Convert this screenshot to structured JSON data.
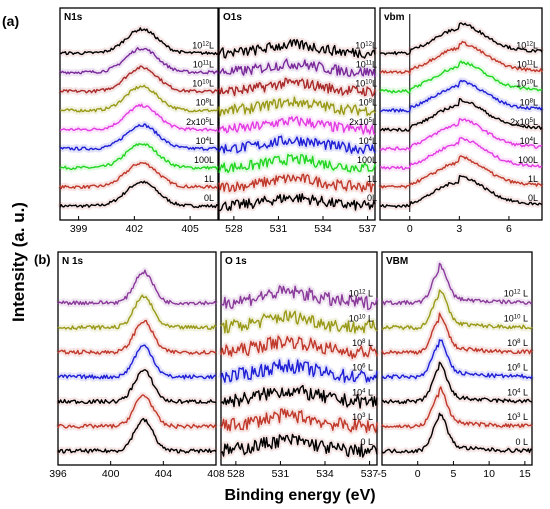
{
  "figure": {
    "ylabel": "Intensity (a. u.)",
    "xlabel": "Binding energy (eV)",
    "row_labels": [
      "(a)",
      "(b)"
    ]
  },
  "chart_data": [
    {
      "id": "a-n1s",
      "type": "line",
      "title": "N1s",
      "xlim": [
        398,
        406.5
      ],
      "xticks": [
        399,
        402,
        405
      ],
      "peak": 402.4,
      "width": 1.2,
      "series": [
        {
          "label": "0L",
          "color": "#000000"
        },
        {
          "label": "1L",
          "color": "#c0392b"
        },
        {
          "label": "100L",
          "color": "#22d622"
        },
        {
          "label": "10⁴L",
          "color": "#1f1fd6"
        },
        {
          "label": "2x10⁵L",
          "color": "#e23ce2"
        },
        {
          "label": "10⁸L",
          "color": "#9a9a1a"
        },
        {
          "label": "10¹⁰L",
          "color": "#aa2a2a"
        },
        {
          "label": "10¹¹L",
          "color": "#7a2a9a"
        },
        {
          "label": "10¹²L",
          "color": "#000000"
        }
      ]
    },
    {
      "id": "a-o1s",
      "type": "line",
      "title": "O1s",
      "xlim": [
        527,
        537.5
      ],
      "xticks": [
        528,
        531,
        534,
        537
      ],
      "peak": 532,
      "width": 2.5,
      "series": [
        {
          "label": "0L",
          "color": "#000000"
        },
        {
          "label": "1L",
          "color": "#c0392b"
        },
        {
          "label": "100L",
          "color": "#22d622"
        },
        {
          "label": "10⁴L",
          "color": "#1f1fd6"
        },
        {
          "label": "2x10⁵L",
          "color": "#e23ce2"
        },
        {
          "label": "10⁸L",
          "color": "#9a9a1a"
        },
        {
          "label": "10¹⁰L",
          "color": "#aa2a2a"
        },
        {
          "label": "10¹¹L",
          "color": "#7a2a9a"
        },
        {
          "label": "10¹²L",
          "color": "#000000"
        }
      ]
    },
    {
      "id": "a-vbm",
      "type": "line",
      "title": "vbm",
      "xlim": [
        -1.8,
        8
      ],
      "xticks": [
        0,
        3,
        6
      ],
      "peak": 3,
      "width": 1.5,
      "series": [
        {
          "label": "0L",
          "color": "#000000"
        },
        {
          "label": "1L",
          "color": "#c0392b"
        },
        {
          "label": "100L",
          "color": "#e23ce2"
        },
        {
          "label": "10⁴L",
          "color": "#e23ce2"
        },
        {
          "label": "2x10⁵L",
          "color": "#000000"
        },
        {
          "label": "10⁸L",
          "color": "#1f1fd6"
        },
        {
          "label": "10¹⁰L",
          "color": "#22d622"
        },
        {
          "label": "10¹¹L",
          "color": "#c0392b"
        },
        {
          "label": "10¹²L",
          "color": "#000000"
        }
      ]
    },
    {
      "id": "b-n1s",
      "type": "line",
      "title": "N 1s",
      "xlim": [
        396,
        408
      ],
      "xticks": [
        396,
        400,
        404,
        408
      ],
      "peak": 402.5,
      "width": 1.0,
      "series": [
        {
          "label": "0 L",
          "color": "#000000"
        },
        {
          "label": "10³ L",
          "color": "#c0392b"
        },
        {
          "label": "10⁴ L",
          "color": "#000000"
        },
        {
          "label": "10⁶ L",
          "color": "#1f1fd6"
        },
        {
          "label": "10⁸ L",
          "color": "#c0392b"
        },
        {
          "label": "10¹⁰ L",
          "color": "#9a9a1a"
        },
        {
          "label": "10¹² L",
          "color": "#8a3a9a"
        }
      ]
    },
    {
      "id": "b-o1s",
      "type": "line",
      "title": "O 1s",
      "xlim": [
        527,
        537.5
      ],
      "xticks": [
        528,
        531,
        534,
        537
      ],
      "peak": 531.5,
      "width": 2.5,
      "series": [
        {
          "label": "0 L",
          "color": "#000000"
        },
        {
          "label": "10³ L",
          "color": "#c0392b"
        },
        {
          "label": "10⁴ L",
          "color": "#000000"
        },
        {
          "label": "10⁶ L",
          "color": "#1f1fd6"
        },
        {
          "label": "10⁸ L",
          "color": "#c0392b"
        },
        {
          "label": "10¹⁰ L",
          "color": "#9a9a1a"
        },
        {
          "label": "10¹² L",
          "color": "#8a3a9a"
        }
      ]
    },
    {
      "id": "b-vbm",
      "type": "line",
      "title": "VBM",
      "xlim": [
        -5,
        16
      ],
      "xticks": [
        -5,
        0,
        5,
        10,
        15
      ],
      "peak": 3,
      "width": 1.0,
      "series": [
        {
          "label": "0 L",
          "color": "#000000"
        },
        {
          "label": "10³ L",
          "color": "#c0392b"
        },
        {
          "label": "10⁴ L",
          "color": "#000000"
        },
        {
          "label": "10⁶ L",
          "color": "#1f1fd6"
        },
        {
          "label": "10⁸ L",
          "color": "#c0392b"
        },
        {
          "label": "10¹⁰ L",
          "color": "#9a9a1a"
        },
        {
          "label": "10¹² L",
          "color": "#8a3a9a"
        }
      ]
    }
  ]
}
